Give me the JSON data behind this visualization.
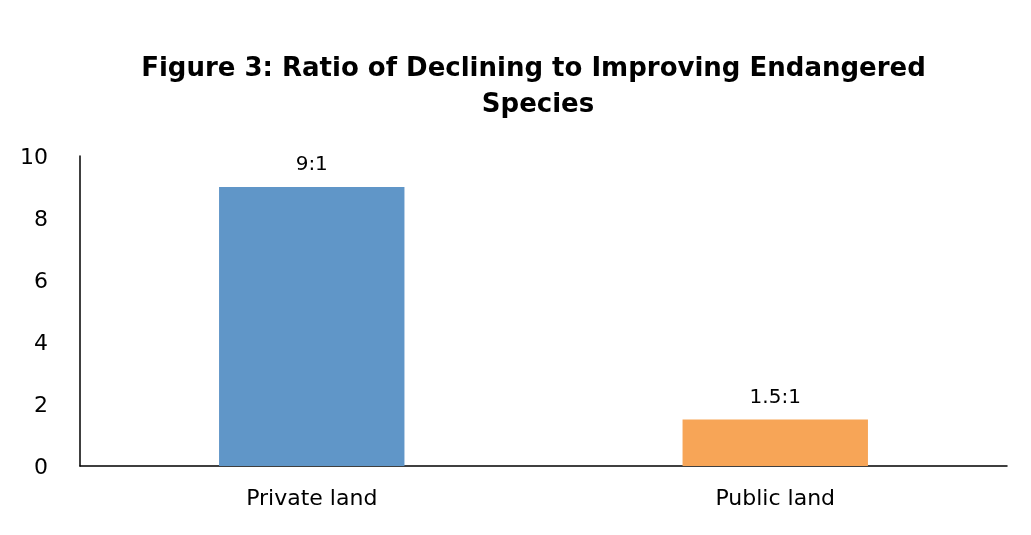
{
  "chart_data": {
    "type": "bar",
    "title": "Figure 3: Ratio of Declining to Improving Endangered Species",
    "categories": [
      "Private land",
      "Public land"
    ],
    "values": [
      9,
      1.5
    ],
    "colors": [
      "#6096c8",
      "#f7a557"
    ],
    "value_labels": [
      "9:1",
      "1.5:1"
    ],
    "ylim": [
      0,
      10
    ],
    "yticks": [
      0,
      2,
      4,
      6,
      8,
      10
    ],
    "grid": false
  }
}
